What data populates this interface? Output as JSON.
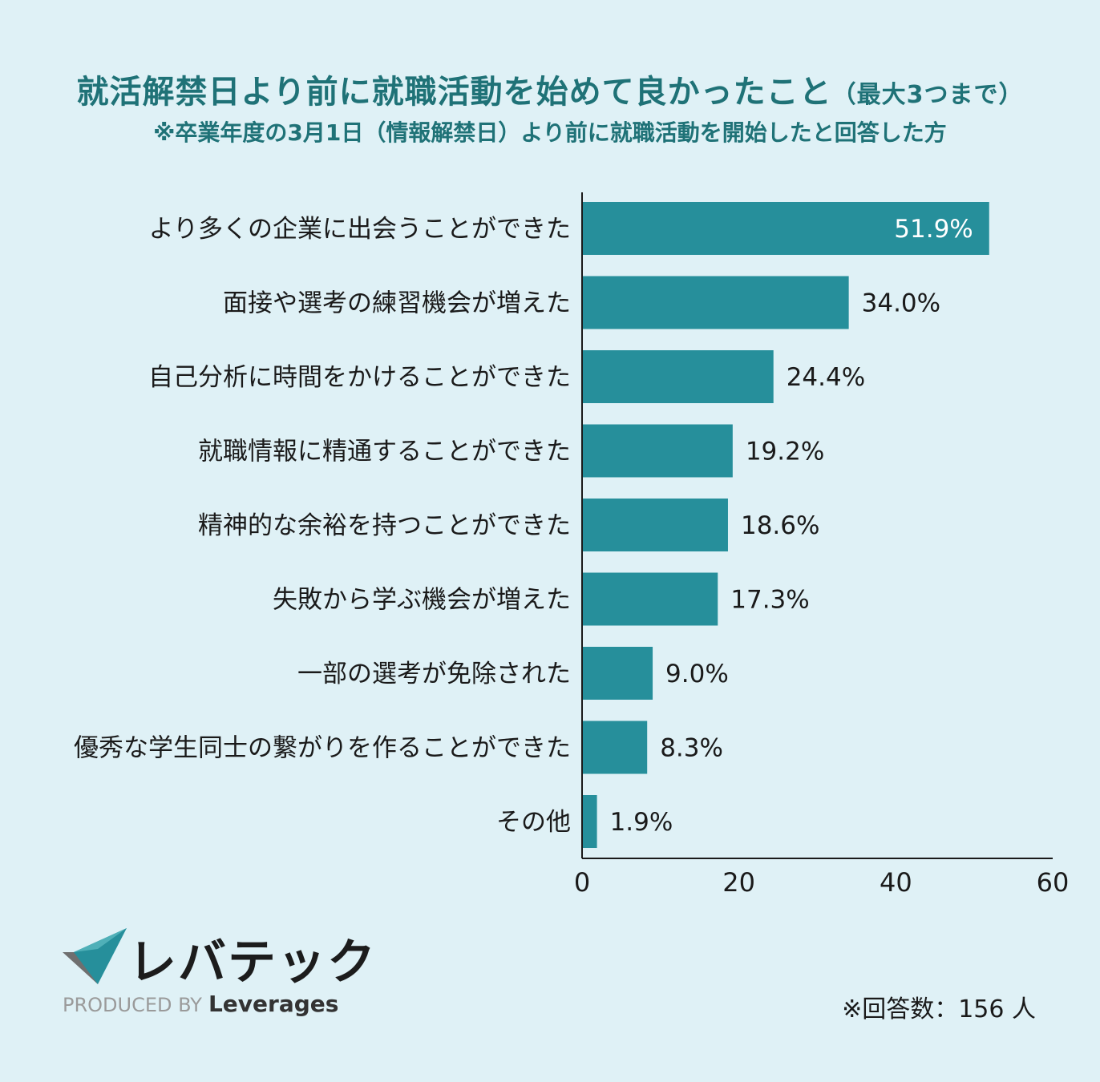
{
  "header": {
    "title": "就活解禁日より前に就職活動を始めて良かったこと",
    "title_suffix": "（最大3つまで）",
    "subtitle": "※卒業年度の3月1日（情報解禁日）より前に就職活動を開始したと回答した方"
  },
  "chart_data": {
    "type": "bar",
    "orientation": "horizontal",
    "categories": [
      "より多くの企業に出会うことができた",
      "面接や選考の練習機会が増えた",
      "自己分析に時間をかけることができた",
      "就職情報に精通することができた",
      "精神的な余裕を持つことができた",
      "失敗から学ぶ機会が増えた",
      "一部の選考が免除された",
      "優秀な学生同士の繋がりを作ることができた",
      "その他"
    ],
    "values": [
      51.9,
      34.0,
      24.4,
      19.2,
      18.6,
      17.3,
      9.0,
      8.3,
      1.9
    ],
    "value_labels": [
      "51.9%",
      "34.0%",
      "24.4%",
      "19.2%",
      "18.6%",
      "17.3%",
      "9.0%",
      "8.3%",
      "1.9%"
    ],
    "xlim": [
      0,
      60
    ],
    "xticks": [
      "0",
      "20",
      "40",
      "60"
    ],
    "bar_color": "#268f9b",
    "unit": "%"
  },
  "footer": {
    "logo_text": "レバテック",
    "produced_by": "PRODUCED BY",
    "brand": "Leverages",
    "respondents_note": "※回答数：156 人"
  }
}
